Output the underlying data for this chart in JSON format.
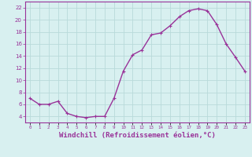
{
  "x": [
    0,
    1,
    2,
    3,
    4,
    5,
    6,
    7,
    8,
    9,
    10,
    11,
    12,
    13,
    14,
    15,
    16,
    17,
    18,
    19,
    20,
    21,
    22,
    23
  ],
  "y": [
    7.0,
    6.0,
    6.0,
    6.5,
    4.5,
    4.0,
    3.8,
    4.0,
    4.0,
    7.0,
    11.5,
    14.2,
    15.0,
    17.5,
    17.8,
    19.0,
    20.5,
    21.5,
    21.8,
    21.5,
    19.2,
    16.0,
    13.8,
    11.5
  ],
  "line_color": "#993399",
  "marker": "+",
  "marker_size": 3,
  "line_width": 1.0,
  "xlabel": "Windchill (Refroidissement éolien,°C)",
  "xlabel_fontsize": 6.5,
  "bg_color": "#d8f0f0",
  "grid_color": "#b8dada",
  "tick_color": "#993399",
  "ylim": [
    3,
    23
  ],
  "xlim": [
    -0.5,
    23.5
  ],
  "yticks": [
    4,
    6,
    8,
    10,
    12,
    14,
    16,
    18,
    20,
    22
  ],
  "xtick_labels": [
    "0",
    "1",
    "2",
    "3",
    "4",
    "5",
    "6",
    "7",
    "8",
    "9",
    "10",
    "11",
    "12",
    "13",
    "14",
    "15",
    "16",
    "17",
    "18",
    "19",
    "20",
    "21",
    "22",
    "23"
  ]
}
